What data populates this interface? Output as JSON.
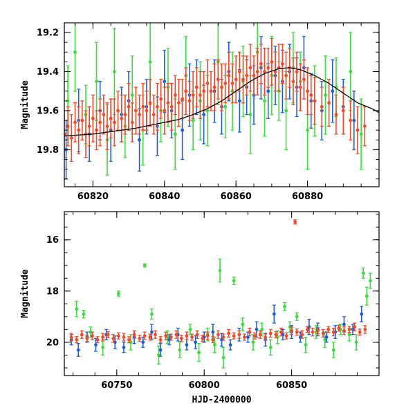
{
  "chart_data": [
    {
      "type": "scatter",
      "title": "",
      "xlabel": "",
      "ylabel": "Magnitude",
      "xlim": [
        60812,
        60900
      ],
      "ylim": [
        19.99,
        19.15
      ],
      "y_inverted": true,
      "xticks": [
        60820,
        60840,
        60860,
        60880
      ],
      "yticks": [
        19.2,
        19.4,
        19.6,
        19.8
      ],
      "grid": false,
      "colors": {
        "green": "#3ddc3d",
        "blue": "#1f5fd6",
        "red": "#f04a2a",
        "model": "#000000"
      },
      "series": [
        {
          "color": "green",
          "x": [
            60813,
            60815,
            60818,
            60821,
            60824,
            60826,
            60829,
            60831,
            60834,
            60836,
            60839,
            60841,
            60843,
            60846,
            60848,
            60850,
            60852,
            60855,
            60857,
            60859,
            60862,
            60864,
            60866,
            60868,
            60870,
            60872,
            60874,
            60876,
            60878,
            60880,
            60882,
            60885,
            60888,
            60892,
            60895
          ],
          "y": [
            19.55,
            19.3,
            19.62,
            19.45,
            19.75,
            19.4,
            19.68,
            19.52,
            19.7,
            19.35,
            19.6,
            19.48,
            19.72,
            19.42,
            19.65,
            19.55,
            19.6,
            19.35,
            19.58,
            19.5,
            19.45,
            19.62,
            19.3,
            19.55,
            19.42,
            19.5,
            19.6,
            19.38,
            19.45,
            19.7,
            19.55,
            19.52,
            19.48,
            19.4,
            19.72
          ],
          "err": [
            0.18,
            0.2,
            0.15,
            0.2,
            0.18,
            0.22,
            0.16,
            0.2,
            0.18,
            0.22,
            0.16,
            0.2,
            0.18,
            0.2,
            0.15,
            0.2,
            0.18,
            0.22,
            0.16,
            0.2,
            0.18,
            0.2,
            0.22,
            0.18,
            0.2,
            0.15,
            0.2,
            0.18,
            0.15,
            0.2,
            0.18,
            0.2,
            0.15,
            0.2,
            0.18
          ]
        },
        {
          "color": "blue",
          "x": [
            60812.5,
            60816,
            60819,
            60822,
            60825,
            60828,
            60830,
            60833,
            60835,
            60838,
            60840,
            60842,
            60845,
            60847,
            60849,
            60851,
            60854,
            60856,
            60858,
            60861,
            60863,
            60865,
            60867,
            60869,
            60871,
            60873,
            60875,
            60877,
            60879,
            60881,
            60884,
            60887,
            60890,
            60893
          ],
          "y": [
            19.8,
            19.65,
            19.72,
            19.6,
            19.7,
            19.62,
            19.55,
            19.75,
            19.58,
            19.68,
            19.45,
            19.6,
            19.7,
            19.52,
            19.48,
            19.62,
            19.5,
            19.58,
            19.4,
            19.55,
            19.48,
            19.52,
            19.38,
            19.5,
            19.42,
            19.45,
            19.4,
            19.48,
            19.38,
            19.55,
            19.6,
            19.5,
            19.58,
            19.65
          ],
          "err": [
            0.15,
            0.16,
            0.14,
            0.15,
            0.16,
            0.14,
            0.15,
            0.16,
            0.14,
            0.15,
            0.16,
            0.14,
            0.15,
            0.16,
            0.14,
            0.15,
            0.16,
            0.14,
            0.15,
            0.16,
            0.14,
            0.15,
            0.16,
            0.14,
            0.15,
            0.16,
            0.14,
            0.15,
            0.16,
            0.14,
            0.15,
            0.16,
            0.14,
            0.15
          ]
        },
        {
          "color": "red",
          "x": [
            60812,
            60813,
            60814,
            60815,
            60816,
            60817,
            60818,
            60819,
            60820,
            60821,
            60822,
            60823,
            60824,
            60825,
            60826,
            60827,
            60828,
            60829,
            60830,
            60831,
            60832,
            60833,
            60834,
            60835,
            60836,
            60837,
            60838,
            60839,
            60840,
            60841,
            60842,
            60843,
            60844,
            60845,
            60846,
            60847,
            60848,
            60849,
            60850,
            60851,
            60852,
            60853,
            60854,
            60855,
            60856,
            60857,
            60858,
            60859,
            60860,
            60861,
            60862,
            60863,
            60864,
            60865,
            60866,
            60867,
            60868,
            60869,
            60870,
            60871,
            60872,
            60873,
            60874,
            60875,
            60876,
            60877,
            60878,
            60879,
            60880,
            60881,
            60882,
            60884,
            60886,
            60888,
            60890,
            60892,
            60894,
            60896
          ],
          "y": [
            19.72,
            19.68,
            19.74,
            19.66,
            19.7,
            19.65,
            19.72,
            19.68,
            19.64,
            19.7,
            19.66,
            19.62,
            19.68,
            19.64,
            19.66,
            19.6,
            19.64,
            19.62,
            19.58,
            19.66,
            19.6,
            19.62,
            19.58,
            19.6,
            19.56,
            19.62,
            19.58,
            19.54,
            19.6,
            19.56,
            19.58,
            19.52,
            19.56,
            19.54,
            19.5,
            19.55,
            19.52,
            19.48,
            19.52,
            19.5,
            19.46,
            19.5,
            19.48,
            19.44,
            19.48,
            19.46,
            19.42,
            19.46,
            19.44,
            19.4,
            19.44,
            19.42,
            19.38,
            19.42,
            19.4,
            19.36,
            19.4,
            19.38,
            19.35,
            19.4,
            19.38,
            19.36,
            19.42,
            19.38,
            19.45,
            19.4,
            19.48,
            19.44,
            19.5,
            19.52,
            19.55,
            19.58,
            19.56,
            19.62,
            19.6,
            19.65,
            19.7,
            19.68
          ],
          "err": [
            0.12,
            0.1,
            0.12,
            0.1,
            0.12,
            0.1,
            0.12,
            0.1,
            0.12,
            0.1,
            0.12,
            0.1,
            0.12,
            0.1,
            0.12,
            0.1,
            0.12,
            0.1,
            0.12,
            0.1,
            0.12,
            0.1,
            0.12,
            0.1,
            0.12,
            0.1,
            0.12,
            0.1,
            0.12,
            0.1,
            0.12,
            0.1,
            0.12,
            0.1,
            0.12,
            0.1,
            0.12,
            0.1,
            0.12,
            0.1,
            0.12,
            0.1,
            0.12,
            0.1,
            0.12,
            0.1,
            0.12,
            0.1,
            0.12,
            0.1,
            0.12,
            0.1,
            0.12,
            0.1,
            0.12,
            0.1,
            0.12,
            0.1,
            0.12,
            0.1,
            0.12,
            0.1,
            0.12,
            0.1,
            0.12,
            0.1,
            0.12,
            0.1,
            0.12,
            0.1,
            0.12,
            0.1,
            0.12,
            0.1,
            0.12,
            0.1,
            0.12,
            0.1
          ]
        },
        {
          "color": "model",
          "type": "line",
          "x": [
            60812,
            60816,
            60820,
            60824,
            60828,
            60832,
            60836,
            60840,
            60844,
            60848,
            60852,
            60856,
            60860,
            60864,
            60868,
            60872,
            60875,
            60878,
            60882,
            60886,
            60890,
            60894,
            60898,
            60900
          ],
          "y": [
            19.73,
            19.725,
            19.72,
            19.71,
            19.7,
            19.69,
            19.675,
            19.66,
            19.645,
            19.62,
            19.59,
            19.55,
            19.5,
            19.45,
            19.41,
            19.385,
            19.38,
            19.39,
            19.42,
            19.46,
            19.51,
            19.56,
            19.59,
            19.61
          ]
        }
      ]
    },
    {
      "type": "scatter",
      "title": "",
      "xlabel": "HJD-2400000",
      "ylabel": "Magnitude",
      "xlim": [
        60720,
        60900
      ],
      "ylim": [
        21.3,
        14.9
      ],
      "y_inverted": true,
      "xticks": [
        60750,
        60800,
        60850
      ],
      "yticks": [
        16,
        18,
        20
      ],
      "grid": false,
      "colors": {
        "green": "#3ddc3d",
        "blue": "#1f5fd6",
        "red": "#f04a2a"
      },
      "series": [
        {
          "color": "green",
          "x": [
            60727,
            60731,
            60735,
            60742,
            60751,
            60758,
            60766,
            60770,
            60774,
            60779,
            60786,
            60792,
            60797,
            60802,
            60806,
            60809,
            60811,
            60817,
            60822,
            60828,
            60833,
            60838,
            60842,
            60846,
            60849,
            60853,
            60858,
            60864,
            60869,
            60874,
            60878,
            60883,
            60887,
            60891,
            60893,
            60895
          ],
          "y": [
            18.7,
            18.9,
            19.6,
            20.2,
            18.1,
            20.0,
            17.0,
            18.9,
            20.5,
            19.8,
            20.3,
            19.5,
            20.4,
            19.7,
            20.1,
            17.2,
            20.6,
            17.6,
            19.3,
            20.0,
            19.5,
            20.2,
            19.8,
            18.6,
            19.4,
            19.0,
            20.1,
            19.6,
            19.9,
            20.3,
            19.5,
            19.7,
            20.0,
            17.3,
            18.2,
            17.6
          ],
          "err": [
            0.3,
            0.15,
            0.2,
            0.3,
            0.1,
            0.3,
            0.06,
            0.2,
            0.35,
            0.25,
            0.3,
            0.2,
            0.35,
            0.25,
            0.3,
            0.45,
            0.4,
            0.15,
            0.25,
            0.3,
            0.25,
            0.3,
            0.25,
            0.15,
            0.2,
            0.15,
            0.3,
            0.25,
            0.3,
            0.3,
            0.2,
            0.25,
            0.3,
            0.2,
            0.35,
            0.3
          ]
        },
        {
          "color": "blue",
          "x": [
            60724,
            60728,
            60733,
            60738,
            60744,
            60749,
            60754,
            60760,
            60765,
            60770,
            60775,
            60780,
            60785,
            60790,
            60795,
            60800,
            60805,
            60810,
            60815,
            60820,
            60825,
            60830,
            60835,
            60840,
            60845,
            60850,
            60855,
            60860,
            60865,
            60870,
            60875,
            60880,
            60885,
            60890
          ],
          "y": [
            19.9,
            20.3,
            19.8,
            20.1,
            19.7,
            20.0,
            20.2,
            19.8,
            20.0,
            19.6,
            20.3,
            19.9,
            19.7,
            20.1,
            20.0,
            19.8,
            19.6,
            19.9,
            20.1,
            19.7,
            19.8,
            19.5,
            19.9,
            18.9,
            19.7,
            19.6,
            19.8,
            19.4,
            19.5,
            19.8,
            19.6,
            19.3,
            19.5,
            18.9
          ],
          "err": [
            0.2,
            0.25,
            0.2,
            0.25,
            0.2,
            0.25,
            0.2,
            0.25,
            0.2,
            0.3,
            0.25,
            0.2,
            0.25,
            0.2,
            0.25,
            0.2,
            0.3,
            0.25,
            0.2,
            0.25,
            0.2,
            0.3,
            0.25,
            0.35,
            0.2,
            0.25,
            0.2,
            0.3,
            0.25,
            0.2,
            0.25,
            0.3,
            0.2,
            0.3
          ]
        },
        {
          "color": "red",
          "x": [
            60724,
            60727,
            60730,
            60733,
            60736,
            60739,
            60742,
            60745,
            60748,
            60751,
            60754,
            60757,
            60760,
            60763,
            60766,
            60769,
            60772,
            60775,
            60778,
            60781,
            60784,
            60787,
            60790,
            60793,
            60796,
            60799,
            60802,
            60805,
            60808,
            60811,
            60814,
            60817,
            60820,
            60823,
            60826,
            60829,
            60832,
            60835,
            60838,
            60841,
            60844,
            60847,
            60850,
            60853,
            60856,
            60859,
            60862,
            60865,
            60868,
            60871,
            60874,
            60877,
            60880,
            60883,
            60886,
            60889,
            60892,
            60852
          ],
          "y": [
            19.8,
            19.9,
            19.7,
            19.85,
            19.75,
            19.9,
            19.8,
            19.7,
            19.85,
            19.75,
            19.8,
            19.9,
            19.7,
            19.85,
            19.75,
            19.8,
            19.7,
            19.9,
            19.75,
            19.8,
            19.7,
            19.85,
            19.75,
            19.8,
            19.7,
            19.85,
            19.75,
            19.9,
            19.7,
            19.8,
            19.65,
            19.75,
            19.7,
            19.8,
            19.6,
            19.75,
            19.7,
            19.8,
            19.65,
            19.7,
            19.6,
            19.75,
            19.55,
            19.6,
            19.7,
            19.5,
            19.6,
            19.55,
            19.65,
            19.5,
            19.6,
            19.45,
            19.55,
            19.5,
            19.4,
            19.6,
            19.5,
            15.3
          ],
          "err": [
            0.15,
            0.12,
            0.15,
            0.12,
            0.15,
            0.12,
            0.15,
            0.12,
            0.15,
            0.12,
            0.15,
            0.12,
            0.15,
            0.12,
            0.15,
            0.12,
            0.15,
            0.12,
            0.15,
            0.12,
            0.15,
            0.12,
            0.15,
            0.12,
            0.15,
            0.12,
            0.15,
            0.12,
            0.15,
            0.12,
            0.15,
            0.12,
            0.15,
            0.12,
            0.15,
            0.12,
            0.15,
            0.12,
            0.15,
            0.12,
            0.15,
            0.12,
            0.15,
            0.12,
            0.15,
            0.12,
            0.15,
            0.12,
            0.15,
            0.12,
            0.15,
            0.12,
            0.15,
            0.12,
            0.15,
            0.12,
            0.15,
            0.08
          ]
        }
      ]
    }
  ]
}
